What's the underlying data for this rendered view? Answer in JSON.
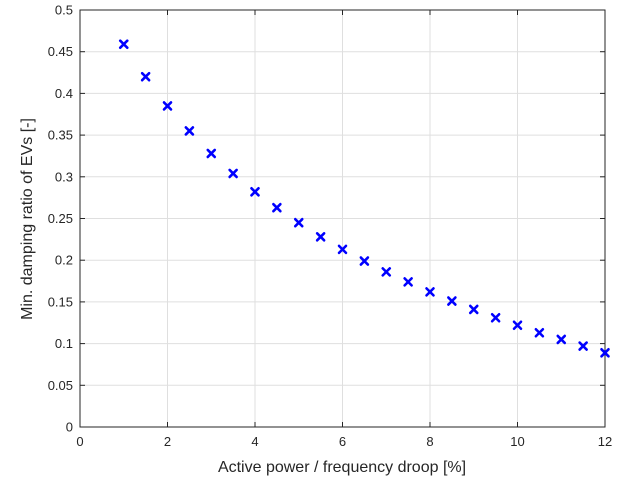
{
  "chart_data": {
    "type": "scatter",
    "xlabel": "Active power / frequency droop [%]",
    "ylabel": "Min. damping ratio of EVs [-]",
    "xlim": [
      0,
      12
    ],
    "ylim": [
      0,
      0.5
    ],
    "x_ticks": [
      "0",
      "2",
      "4",
      "6",
      "8",
      "10",
      "12"
    ],
    "y_ticks": [
      "0",
      "0.05",
      "0.1",
      "0.15",
      "0.2",
      "0.25",
      "0.3",
      "0.35",
      "0.4",
      "0.45",
      "0.5"
    ],
    "grid": true,
    "marker": "x",
    "marker_color": "#0000ff",
    "series": [
      {
        "x": [
          1,
          1.5,
          2,
          2.5,
          3,
          3.5,
          4,
          4.5,
          5,
          5.5,
          6,
          6.5,
          7,
          7.5,
          8,
          8.5,
          9,
          9.5,
          10,
          10.5,
          11,
          11.5,
          12
        ],
        "values": [
          0.459,
          0.42,
          0.385,
          0.355,
          0.328,
          0.304,
          0.282,
          0.263,
          0.245,
          0.228,
          0.213,
          0.199,
          0.186,
          0.174,
          0.162,
          0.151,
          0.141,
          0.131,
          0.122,
          0.113,
          0.105,
          0.097,
          0.089
        ]
      }
    ]
  }
}
